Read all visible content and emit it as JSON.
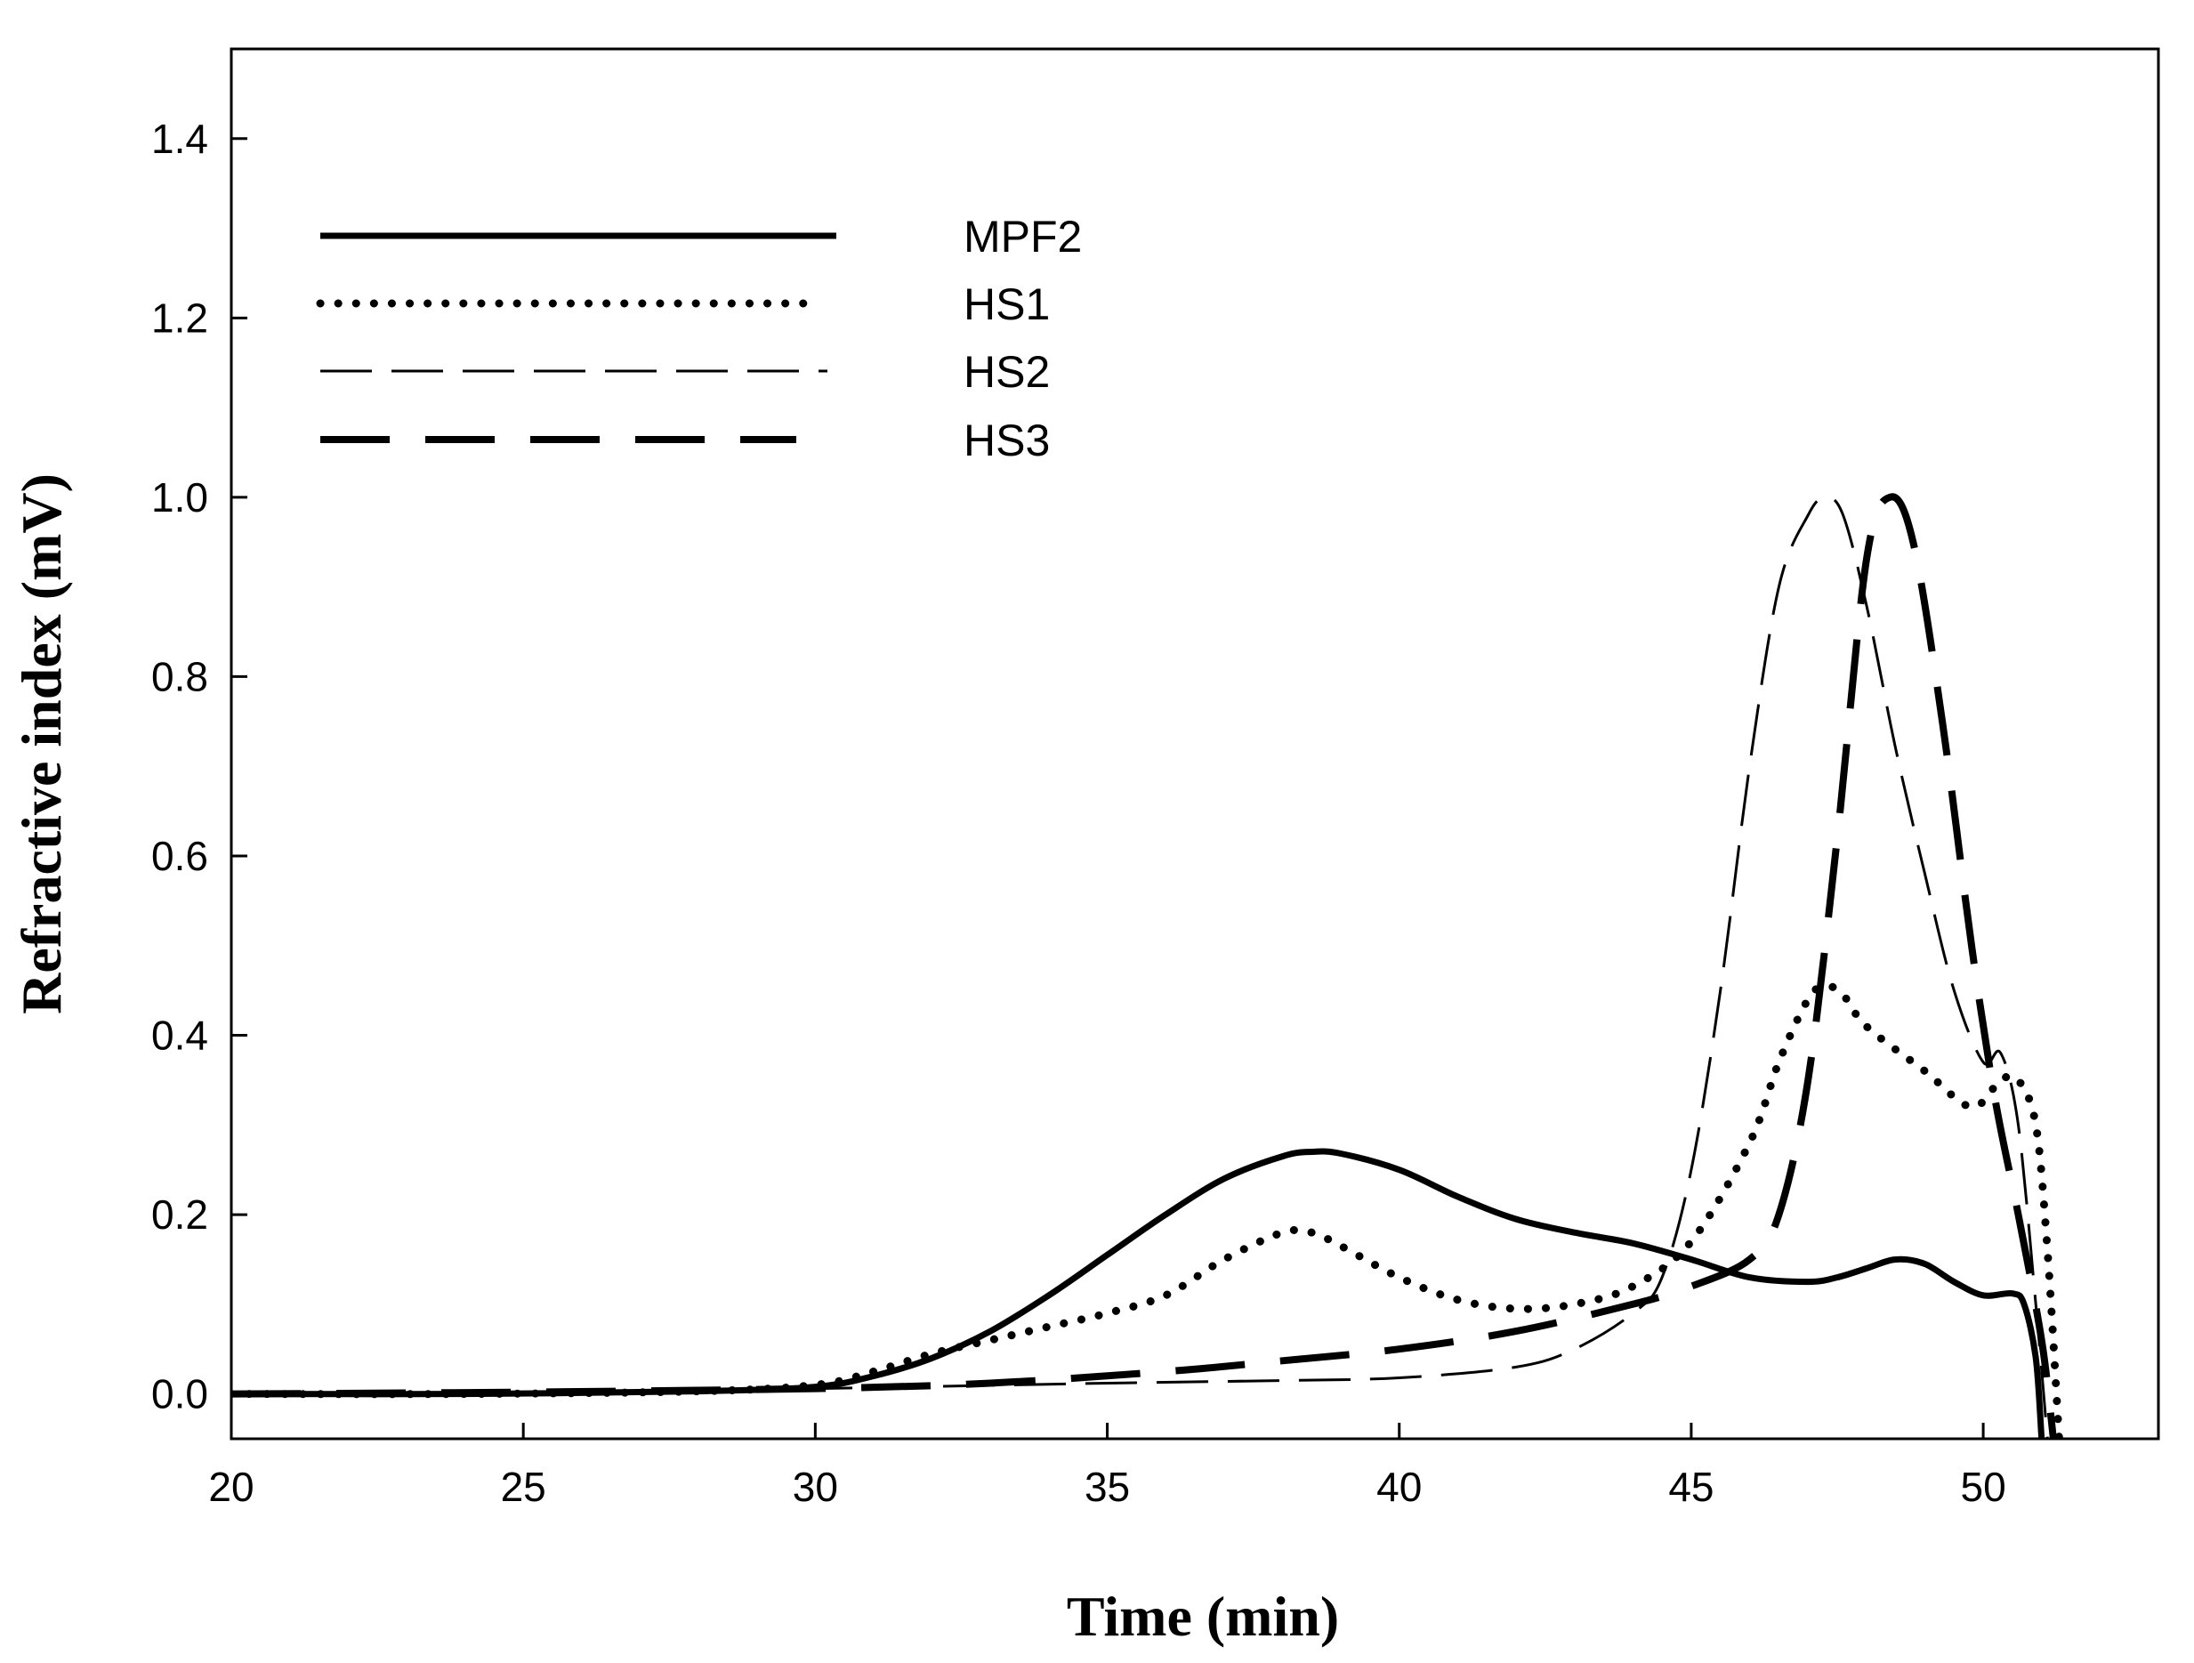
{
  "chart_data": {
    "type": "line",
    "title": "",
    "xlabel": "Time (min)",
    "ylabel": "Refractive index (mV)",
    "xlim": [
      20,
      53
    ],
    "ylim": [
      -0.05,
      1.5
    ],
    "x_ticks": [
      20,
      25,
      30,
      35,
      40,
      45,
      50
    ],
    "x_tick_labels": [
      "20",
      "25",
      "30",
      "35",
      "40",
      "45",
      "50"
    ],
    "y_ticks": [
      0.0,
      0.2,
      0.4,
      0.6,
      0.8,
      1.0,
      1.2,
      1.4
    ],
    "y_tick_labels": [
      "0.0",
      "0.2",
      "0.4",
      "0.6",
      "0.8",
      "1.0",
      "1.2",
      "1.4"
    ],
    "grid": false,
    "legend_position": "top-left",
    "series": [
      {
        "name": "MPF2",
        "style": "solid",
        "points": [
          [
            20,
            0.0
          ],
          [
            24,
            0.0
          ],
          [
            28,
            0.003
          ],
          [
            30,
            0.008
          ],
          [
            31,
            0.02
          ],
          [
            32,
            0.04
          ],
          [
            33,
            0.07
          ],
          [
            34,
            0.11
          ],
          [
            35,
            0.155
          ],
          [
            36,
            0.2
          ],
          [
            37,
            0.24
          ],
          [
            38,
            0.265
          ],
          [
            38.5,
            0.27
          ],
          [
            39,
            0.268
          ],
          [
            40,
            0.25
          ],
          [
            41,
            0.22
          ],
          [
            42,
            0.195
          ],
          [
            43,
            0.18
          ],
          [
            44,
            0.168
          ],
          [
            45,
            0.15
          ],
          [
            46,
            0.13
          ],
          [
            47,
            0.125
          ],
          [
            47.5,
            0.13
          ],
          [
            48,
            0.14
          ],
          [
            48.5,
            0.15
          ],
          [
            49,
            0.145
          ],
          [
            49.5,
            0.125
          ],
          [
            50,
            0.11
          ],
          [
            50.5,
            0.112
          ],
          [
            50.7,
            0.1
          ],
          [
            50.9,
            0.04
          ],
          [
            51.0,
            -0.05
          ]
        ]
      },
      {
        "name": "HS1",
        "style": "dotted",
        "points": [
          [
            20,
            0.0
          ],
          [
            24,
            0.0
          ],
          [
            28,
            0.003
          ],
          [
            30,
            0.01
          ],
          [
            31,
            0.025
          ],
          [
            32,
            0.045
          ],
          [
            33,
            0.06
          ],
          [
            34,
            0.075
          ],
          [
            35,
            0.09
          ],
          [
            36,
            0.11
          ],
          [
            37,
            0.15
          ],
          [
            38,
            0.18
          ],
          [
            38.5,
            0.18
          ],
          [
            39,
            0.165
          ],
          [
            40,
            0.13
          ],
          [
            41,
            0.105
          ],
          [
            42,
            0.095
          ],
          [
            43,
            0.1
          ],
          [
            44,
            0.12
          ],
          [
            45,
            0.17
          ],
          [
            46,
            0.28
          ],
          [
            46.5,
            0.37
          ],
          [
            47,
            0.44
          ],
          [
            47.3,
            0.455
          ],
          [
            47.6,
            0.445
          ],
          [
            48,
            0.41
          ],
          [
            49,
            0.36
          ],
          [
            49.8,
            0.32
          ],
          [
            50.3,
            0.35
          ],
          [
            50.6,
            0.35
          ],
          [
            50.9,
            0.3
          ],
          [
            51.1,
            0.16
          ],
          [
            51.3,
            -0.05
          ]
        ]
      },
      {
        "name": "HS2",
        "style": "dashed",
        "points": [
          [
            20,
            0.0
          ],
          [
            25,
            0.002
          ],
          [
            30,
            0.006
          ],
          [
            35,
            0.012
          ],
          [
            38,
            0.015
          ],
          [
            40,
            0.018
          ],
          [
            42,
            0.03
          ],
          [
            43,
            0.05
          ],
          [
            44,
            0.09
          ],
          [
            44.5,
            0.13
          ],
          [
            45,
            0.25
          ],
          [
            45.5,
            0.45
          ],
          [
            46,
            0.7
          ],
          [
            46.5,
            0.9
          ],
          [
            47,
            0.98
          ],
          [
            47.3,
            1.0
          ],
          [
            47.6,
            0.98
          ],
          [
            48,
            0.88
          ],
          [
            48.5,
            0.72
          ],
          [
            49,
            0.58
          ],
          [
            49.5,
            0.45
          ],
          [
            50,
            0.37
          ],
          [
            50.3,
            0.38
          ],
          [
            50.6,
            0.3
          ],
          [
            50.9,
            0.1
          ],
          [
            51.1,
            -0.05
          ]
        ]
      },
      {
        "name": "HS3",
        "style": "long-dash",
        "points": [
          [
            20,
            0.0
          ],
          [
            25,
            0.002
          ],
          [
            30,
            0.006
          ],
          [
            33,
            0.012
          ],
          [
            36,
            0.025
          ],
          [
            38,
            0.037
          ],
          [
            40,
            0.05
          ],
          [
            42,
            0.07
          ],
          [
            44,
            0.1
          ],
          [
            45,
            0.12
          ],
          [
            46,
            0.15
          ],
          [
            46.5,
            0.2
          ],
          [
            47,
            0.35
          ],
          [
            47.5,
            0.62
          ],
          [
            48,
            0.93
          ],
          [
            48.4,
            1.0
          ],
          [
            48.8,
            0.95
          ],
          [
            49.3,
            0.75
          ],
          [
            49.8,
            0.5
          ],
          [
            50.2,
            0.33
          ],
          [
            50.6,
            0.2
          ],
          [
            51.0,
            0.06
          ],
          [
            51.2,
            -0.05
          ]
        ]
      }
    ]
  }
}
